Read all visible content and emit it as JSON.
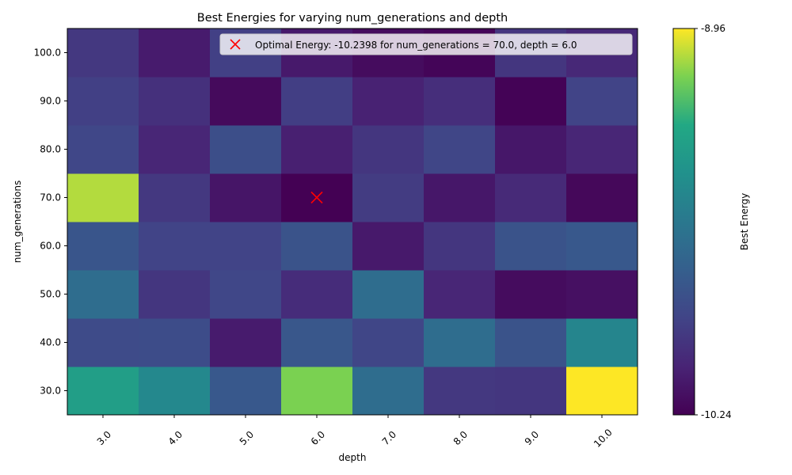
{
  "chart_data": {
    "type": "heatmap",
    "title": "Best Energies for varying num_generations and depth",
    "xlabel": "depth",
    "ylabel": "num_generations",
    "x": [
      "3.0",
      "4.0",
      "5.0",
      "6.0",
      "7.0",
      "8.0",
      "9.0",
      "10.0"
    ],
    "y": [
      "30.0",
      "40.0",
      "50.0",
      "60.0",
      "70.0",
      "80.0",
      "90.0",
      "100.0"
    ],
    "values": [
      [
        -9.35,
        -9.5,
        -9.8,
        -9.12,
        -9.67,
        -9.98,
        -9.99,
        -8.96
      ],
      [
        -9.88,
        -9.87,
        -10.12,
        -9.81,
        -9.91,
        -9.67,
        -9.83,
        -9.52
      ],
      [
        -9.67,
        -9.99,
        -9.9,
        -10.04,
        -9.67,
        -10.07,
        -10.19,
        -10.17
      ],
      [
        -9.82,
        -9.92,
        -9.92,
        -9.83,
        -10.13,
        -9.99,
        -9.83,
        -9.8
      ],
      [
        -9.05,
        -9.98,
        -10.15,
        -10.2398,
        -9.96,
        -10.14,
        -10.05,
        -10.21
      ],
      [
        -9.9,
        -10.07,
        -9.86,
        -10.1,
        -9.99,
        -9.91,
        -10.14,
        -10.07
      ],
      [
        -9.94,
        -10.02,
        -10.2,
        -9.95,
        -10.09,
        -10.03,
        -10.23,
        -9.92
      ],
      [
        -9.98,
        -10.12,
        -9.94,
        -10.13,
        -10.19,
        -10.22,
        -9.99,
        -10.06
      ]
    ],
    "colormap": "viridis",
    "vmin": -10.24,
    "vmax": -8.96,
    "colorbar_label": "Best Energy",
    "colorbar_ticks": [
      "-8.96",
      "-10.24"
    ],
    "grid": false,
    "marker": {
      "x": 6.0,
      "y": 70.0,
      "symbol": "x",
      "color": "#ff0000",
      "legend_label": "Optimal Energy: -10.2398 for num_generations = 70.0, depth = 6.0"
    },
    "legend_placement": "top-right"
  }
}
